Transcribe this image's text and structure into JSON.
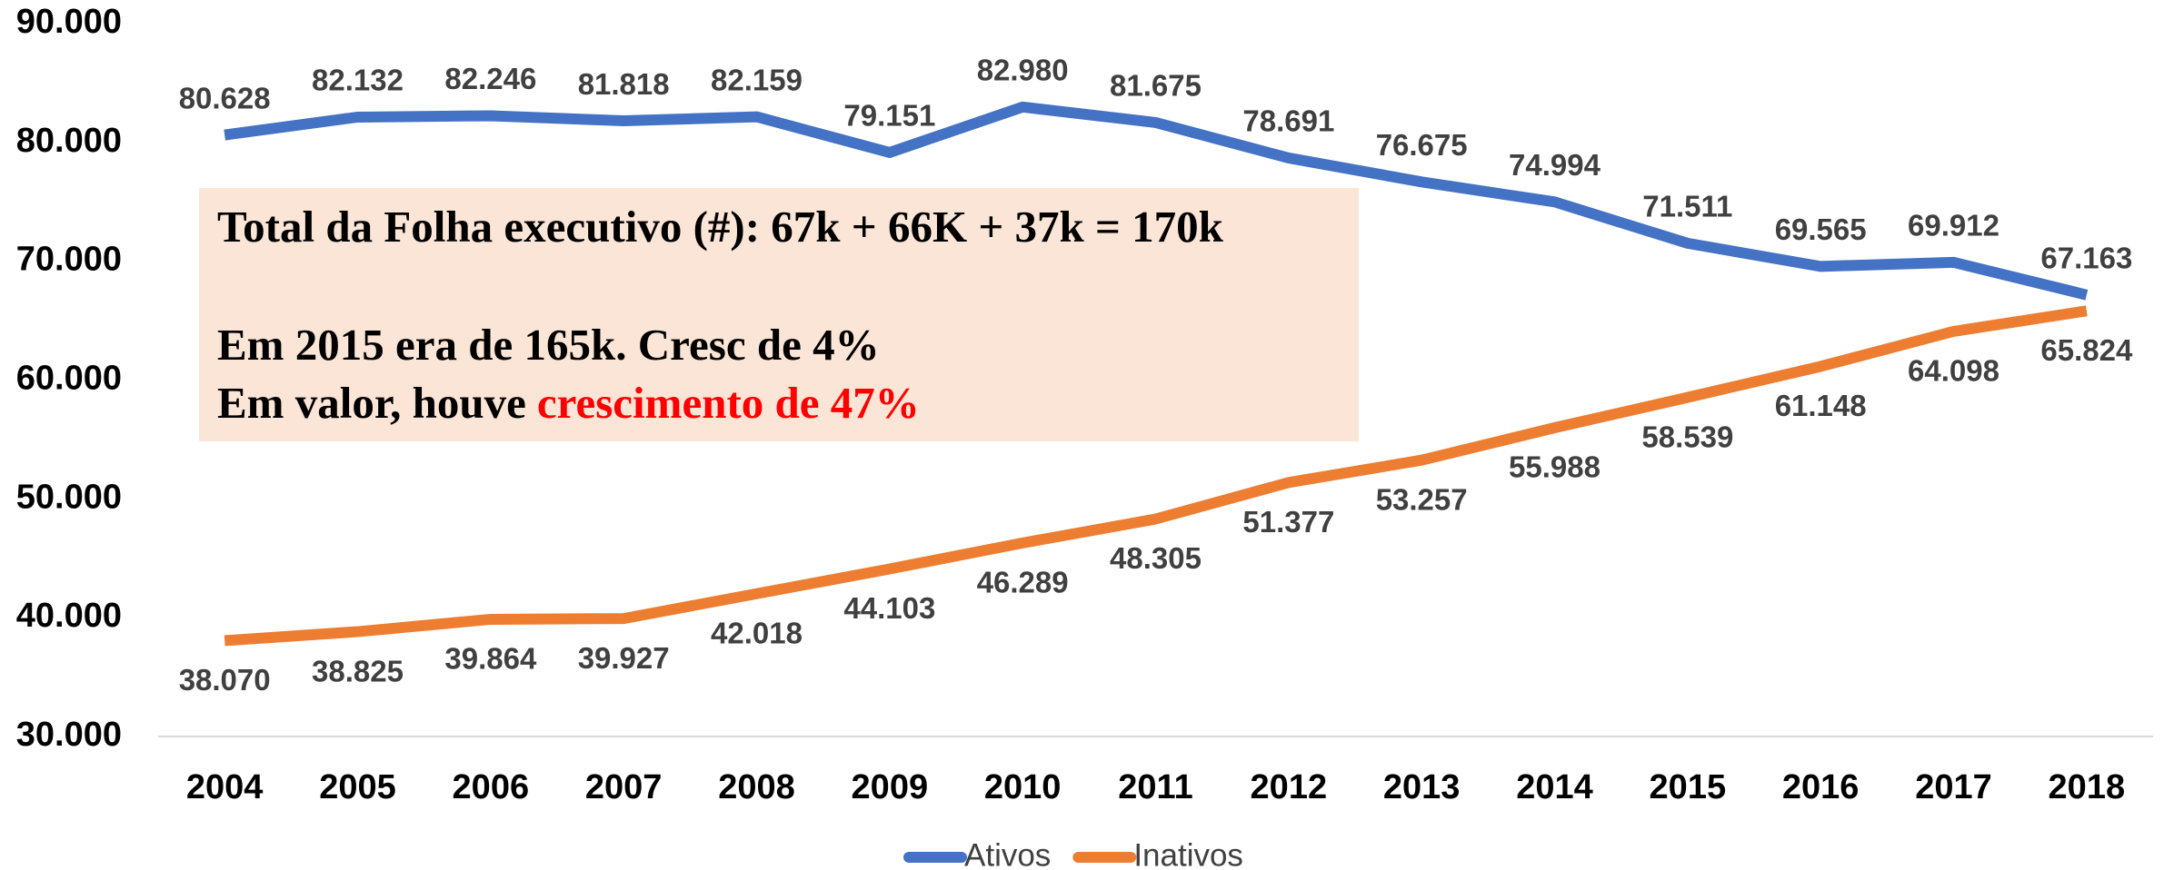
{
  "chart_data": {
    "type": "line",
    "categories": [
      "2004",
      "2005",
      "2006",
      "2007",
      "2008",
      "2009",
      "2010",
      "2011",
      "2012",
      "2013",
      "2014",
      "2015",
      "2016",
      "2017",
      "2018"
    ],
    "series": [
      {
        "name": "Ativos",
        "color": "#4472c4",
        "values": [
          80628,
          82132,
          82246,
          81818,
          82159,
          79151,
          82980,
          81675,
          78691,
          76675,
          74994,
          71511,
          69565,
          69912,
          67163
        ],
        "value_labels": [
          "80.628",
          "82.132",
          "82.246",
          "81.818",
          "82.159",
          "79.151",
          "82.980",
          "81.675",
          "78.691",
          "76.675",
          "74.994",
          "71.511",
          "69.565",
          "69.912",
          "67.163"
        ],
        "label_position": "above"
      },
      {
        "name": "Inativos",
        "color": "#ed7d31",
        "values": [
          38070,
          38825,
          39864,
          39927,
          42018,
          44103,
          46289,
          48305,
          51377,
          53257,
          55988,
          58539,
          61148,
          64098,
          65824
        ],
        "value_labels": [
          "38.070",
          "38.825",
          "39.864",
          "39.927",
          "42.018",
          "44.103",
          "46.289",
          "48.305",
          "51.377",
          "53.257",
          "55.988",
          "58.539",
          "61.148",
          "64.098",
          "65.824"
        ],
        "label_position": "below"
      }
    ],
    "ylim": [
      30000,
      90000
    ],
    "yticks": [
      {
        "value": 30000,
        "label": "30.000"
      },
      {
        "value": 40000,
        "label": "40.000"
      },
      {
        "value": 50000,
        "label": "50.000"
      },
      {
        "value": 60000,
        "label": "60.000"
      },
      {
        "value": 70000,
        "label": "70.000"
      },
      {
        "value": 80000,
        "label": "80.000"
      },
      {
        "value": 90000,
        "label": "90.000"
      }
    ],
    "grid": false,
    "legend": "bottom",
    "annotation": {
      "line1": "Total da Folha executivo (#): 67k + 66K + 37k = 170k",
      "line2": "Em 2015 era de 165k. Cresc de 4%",
      "line3": "Em valor, houve",
      "line3_highlight": "crescimento de 47%",
      "highlight_color": "#ff0000"
    }
  }
}
